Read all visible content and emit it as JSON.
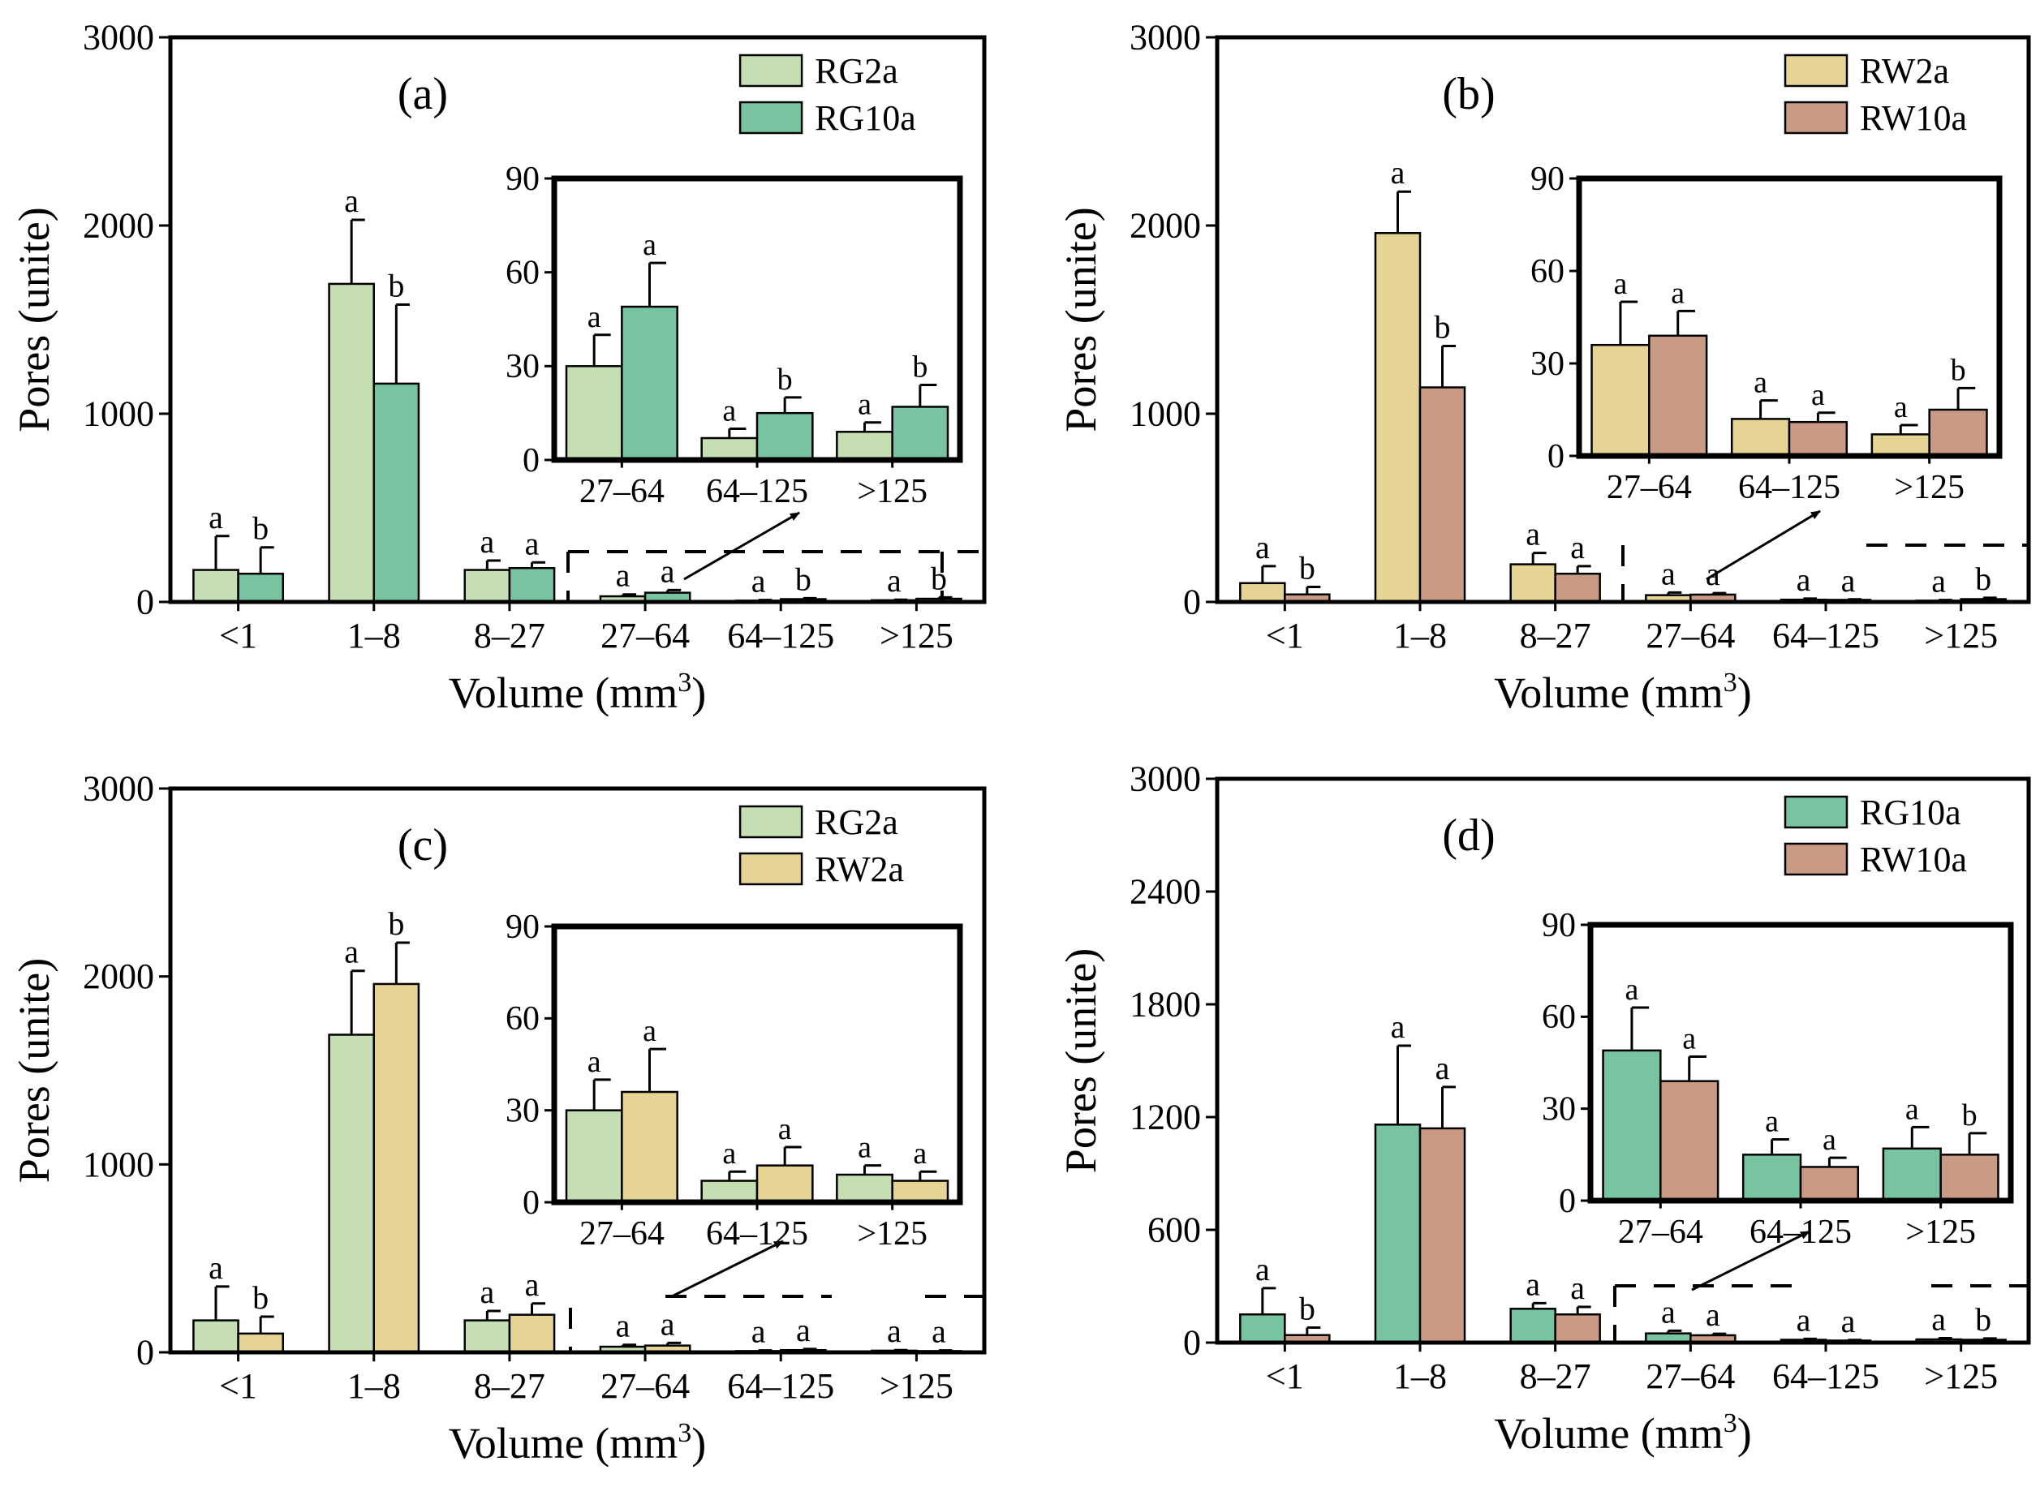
{
  "colors": {
    "RG2a": "#c5dfb3",
    "RG10a": "#78c4a1",
    "RW2a": "#e6d495",
    "RW10a": "#c99a84"
  },
  "chart_data": [
    {
      "type": "bar",
      "panel_label": "(a)",
      "categories": [
        "<1",
        "1–8",
        "8–27",
        "27–64",
        "64–125",
        ">125"
      ],
      "xlabel": "Volume (mm",
      "xlabel_sup": "3",
      "xlabel_end": ")",
      "ylabel": "Pores (unite)",
      "ylim": [
        0,
        3000
      ],
      "yticks": [
        0,
        1000,
        2000,
        3000
      ],
      "series": [
        {
          "name": "RG2a",
          "color_key": "RG2a",
          "values": [
            170,
            1690,
            170,
            30,
            7,
            9
          ],
          "errors": [
            180,
            340,
            50,
            10,
            3,
            3
          ],
          "letters": [
            "a",
            "a",
            "a",
            "a",
            "a",
            "a"
          ]
        },
        {
          "name": "RG10a",
          "color_key": "RG10a",
          "values": [
            150,
            1160,
            180,
            49,
            15,
            17
          ],
          "errors": [
            140,
            420,
            30,
            14,
            5,
            7
          ],
          "letters": [
            "b",
            "b",
            "a",
            "a",
            "b",
            "b"
          ]
        }
      ],
      "inset": {
        "categories": [
          "27–64",
          "64–125",
          ">125"
        ],
        "ylim": [
          0,
          90
        ],
        "yticks": [
          0,
          30,
          60,
          90
        ],
        "series": [
          {
            "name": "RG2a",
            "color_key": "RG2a",
            "values": [
              30,
              7,
              9
            ],
            "errors": [
              10,
              3,
              3
            ],
            "letters": [
              "a",
              "a",
              "a"
            ]
          },
          {
            "name": "RG10a",
            "color_key": "RG10a",
            "values": [
              49,
              15,
              17
            ],
            "errors": [
              14,
              5,
              7
            ],
            "letters": [
              "a",
              "b",
              "b"
            ]
          }
        ]
      }
    },
    {
      "type": "bar",
      "panel_label": "(b)",
      "categories": [
        "<1",
        "1–8",
        "8–27",
        "27–64",
        "64–125",
        ">125"
      ],
      "xlabel": "Volume (mm",
      "xlabel_sup": "3",
      "xlabel_end": ")",
      "ylabel": "Pores (unite)",
      "ylim": [
        0,
        3000
      ],
      "yticks": [
        0,
        1000,
        2000,
        3000
      ],
      "series": [
        {
          "name": "RW2a",
          "color_key": "RW2a",
          "values": [
            100,
            1960,
            200,
            36,
            12,
            7
          ],
          "errors": [
            90,
            220,
            60,
            14,
            6,
            3
          ],
          "letters": [
            "a",
            "a",
            "a",
            "a",
            "a",
            "a"
          ]
        },
        {
          "name": "RW10a",
          "color_key": "RW10a",
          "values": [
            40,
            1140,
            150,
            39,
            11,
            15
          ],
          "errors": [
            40,
            220,
            40,
            8,
            3,
            7
          ],
          "letters": [
            "b",
            "b",
            "a",
            "a",
            "a",
            "b"
          ]
        }
      ],
      "inset": {
        "categories": [
          "27–64",
          "64–125",
          ">125"
        ],
        "ylim": [
          0,
          90
        ],
        "yticks": [
          0,
          30,
          60,
          90
        ],
        "series": [
          {
            "name": "RW2a",
            "color_key": "RW2a",
            "values": [
              36,
              12,
              7
            ],
            "errors": [
              14,
              6,
              3
            ],
            "letters": [
              "a",
              "a",
              "a"
            ]
          },
          {
            "name": "RW10a",
            "color_key": "RW10a",
            "values": [
              39,
              11,
              15
            ],
            "errors": [
              8,
              3,
              7
            ],
            "letters": [
              "a",
              "a",
              "b"
            ]
          }
        ]
      }
    },
    {
      "type": "bar",
      "panel_label": "(c)",
      "categories": [
        "<1",
        "1–8",
        "8–27",
        "27–64",
        "64–125",
        ">125"
      ],
      "xlabel": "Volume (mm",
      "xlabel_sup": "3",
      "xlabel_end": ")",
      "ylabel": "Pores (unite)",
      "ylim": [
        0,
        3000
      ],
      "yticks": [
        0,
        1000,
        2000,
        3000
      ],
      "series": [
        {
          "name": "RG2a",
          "color_key": "RG2a",
          "values": [
            170,
            1690,
            170,
            30,
            7,
            9
          ],
          "errors": [
            180,
            340,
            50,
            10,
            3,
            3
          ],
          "letters": [
            "a",
            "a",
            "a",
            "a",
            "a",
            "a"
          ]
        },
        {
          "name": "RW2a",
          "color_key": "RW2a",
          "values": [
            100,
            1960,
            200,
            36,
            12,
            7
          ],
          "errors": [
            90,
            220,
            60,
            14,
            6,
            3
          ],
          "letters": [
            "b",
            "b",
            "a",
            "a",
            "a",
            "a"
          ]
        }
      ],
      "inset": {
        "categories": [
          "27–64",
          "64–125",
          ">125"
        ],
        "ylim": [
          0,
          90
        ],
        "yticks": [
          0,
          30,
          60,
          90
        ],
        "series": [
          {
            "name": "RG2a",
            "color_key": "RG2a",
            "values": [
              30,
              7,
              9
            ],
            "errors": [
              10,
              3,
              3
            ],
            "letters": [
              "a",
              "a",
              "a"
            ]
          },
          {
            "name": "RW2a",
            "color_key": "RW2a",
            "values": [
              36,
              12,
              7
            ],
            "errors": [
              14,
              6,
              3
            ],
            "letters": [
              "a",
              "a",
              "a"
            ]
          }
        ]
      }
    },
    {
      "type": "bar",
      "panel_label": "(d)",
      "categories": [
        "<1",
        "1–8",
        "8–27",
        "27–64",
        "64–125",
        ">125"
      ],
      "xlabel": "Volume (mm",
      "xlabel_sup": "3",
      "xlabel_end": ")",
      "ylabel": "Pores (unite)",
      "ylim": [
        0,
        3000
      ],
      "yticks": [
        0,
        600,
        1200,
        1800,
        2400,
        3000
      ],
      "series": [
        {
          "name": "RG10a",
          "color_key": "RG10a",
          "values": [
            150,
            1160,
            180,
            49,
            15,
            17
          ],
          "errors": [
            140,
            420,
            30,
            14,
            5,
            7
          ],
          "letters": [
            "a",
            "a",
            "a",
            "a",
            "a",
            "a"
          ]
        },
        {
          "name": "RW10a",
          "color_key": "RW10a",
          "values": [
            40,
            1140,
            150,
            39,
            11,
            15
          ],
          "errors": [
            40,
            220,
            40,
            8,
            3,
            7
          ],
          "letters": [
            "b",
            "a",
            "a",
            "a",
            "a",
            "b"
          ]
        }
      ],
      "inset": {
        "categories": [
          "27–64",
          "64–125",
          ">125"
        ],
        "ylim": [
          0,
          90
        ],
        "yticks": [
          0,
          30,
          60,
          90
        ],
        "series": [
          {
            "name": "RG10a",
            "color_key": "RG10a",
            "values": [
              49,
              15,
              17
            ],
            "errors": [
              14,
              5,
              7
            ],
            "letters": [
              "a",
              "a",
              "a"
            ]
          },
          {
            "name": "RW10a",
            "color_key": "RW10a",
            "values": [
              39,
              11,
              15
            ],
            "errors": [
              8,
              3,
              7
            ],
            "letters": [
              "a",
              "a",
              "b"
            ]
          }
        ]
      }
    }
  ]
}
